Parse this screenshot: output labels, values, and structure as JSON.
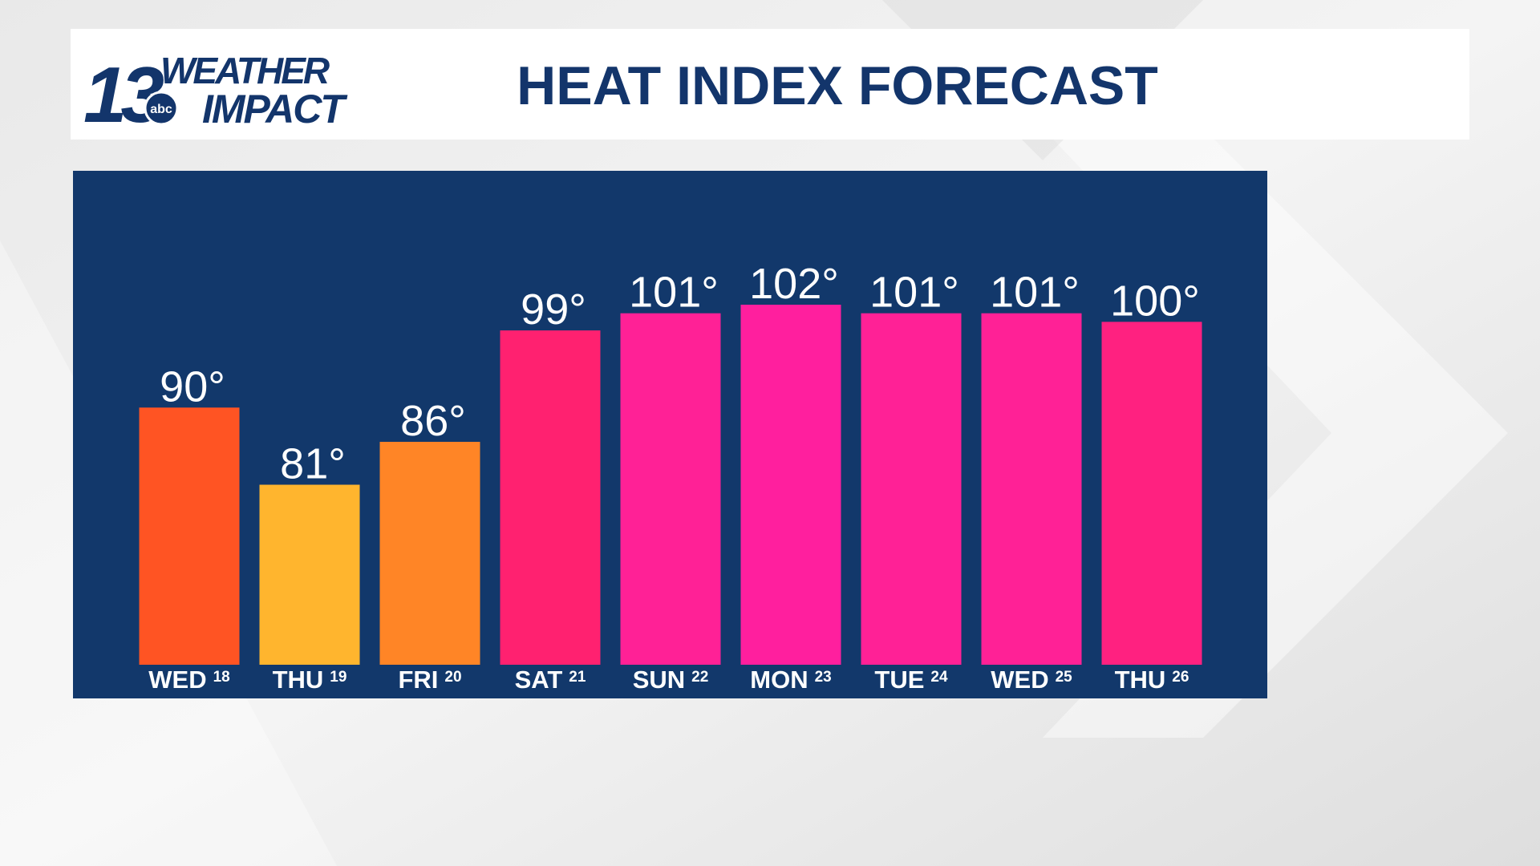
{
  "logo": {
    "number": "13",
    "line1": "WEATHER",
    "line2": "IMPACT",
    "network": "abc"
  },
  "chart_data": {
    "type": "bar",
    "title": "HEAT INDEX FORECAST",
    "categories": [
      "WED",
      "THU",
      "FRI",
      "SAT",
      "SUN",
      "MON",
      "TUE",
      "WED",
      "THU"
    ],
    "dates": [
      "18",
      "19",
      "20",
      "21",
      "22",
      "23",
      "24",
      "25",
      "26"
    ],
    "values": [
      90,
      81,
      86,
      99,
      101,
      102,
      101,
      101,
      100
    ],
    "value_labels": [
      "90°",
      "81°",
      "86°",
      "99°",
      "101°",
      "102°",
      "101°",
      "101°",
      "100°"
    ],
    "colors": [
      "#ff5423",
      "#ffb52e",
      "#ff8526",
      "#ff2170",
      "#ff2196",
      "#ff1f9e",
      "#ff2196",
      "#ff2196",
      "#ff2180"
    ]
  }
}
